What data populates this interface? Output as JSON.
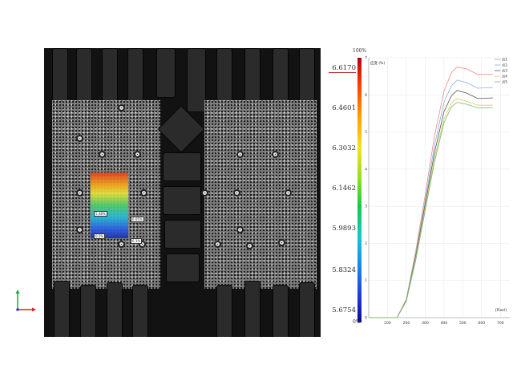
{
  "colorbar": {
    "max_percent": "100%",
    "min_percent": "0%",
    "values": [
      "6.6170",
      "6.4601",
      "6.3032",
      "6.1462",
      "5.9893",
      "5.8324",
      "5.6754"
    ]
  },
  "roi_labels": [
    "5.48%",
    "6.05%",
    "0.5%",
    "6.1%"
  ],
  "icons": {
    "axis_triad": "xyz-axis-triad-icon"
  },
  "colors": {
    "background": "#ffffff",
    "image_panel": "#121212",
    "grid": "#e6e6e6"
  },
  "chart_data": {
    "type": "line",
    "title": "",
    "ylabel": "应变 (%)",
    "xlabel": "[Pixel]",
    "xlim": [
      0,
      750
    ],
    "ylim": [
      0,
      7
    ],
    "xticks": [
      100,
      200,
      300,
      400,
      500,
      600,
      700
    ],
    "yticks": [
      0,
      1,
      2,
      3,
      4,
      5,
      6,
      7
    ],
    "legend_position": "top-right",
    "series": [
      {
        "name": "点1",
        "color": "#f08a8a",
        "points": [
          [
            0,
            0
          ],
          [
            150,
            0
          ],
          [
            200,
            0.5
          ],
          [
            250,
            1.8
          ],
          [
            300,
            3.3
          ],
          [
            350,
            4.9
          ],
          [
            400,
            6.1
          ],
          [
            440,
            6.6
          ],
          [
            470,
            6.75
          ],
          [
            520,
            6.7
          ],
          [
            580,
            6.55
          ],
          [
            660,
            6.55
          ]
        ]
      },
      {
        "name": "点2",
        "color": "#8aaee0",
        "points": [
          [
            0,
            0
          ],
          [
            150,
            0
          ],
          [
            200,
            0.48
          ],
          [
            250,
            1.72
          ],
          [
            300,
            3.15
          ],
          [
            350,
            4.65
          ],
          [
            400,
            5.8
          ],
          [
            440,
            6.25
          ],
          [
            470,
            6.4
          ],
          [
            520,
            6.33
          ],
          [
            580,
            6.18
          ],
          [
            660,
            6.2
          ]
        ]
      },
      {
        "name": "点3",
        "color": "#555555",
        "points": [
          [
            0,
            0
          ],
          [
            150,
            0
          ],
          [
            200,
            0.46
          ],
          [
            250,
            1.66
          ],
          [
            300,
            3.05
          ],
          [
            350,
            4.45
          ],
          [
            400,
            5.55
          ],
          [
            440,
            5.98
          ],
          [
            470,
            6.12
          ],
          [
            520,
            6.05
          ],
          [
            580,
            5.9
          ],
          [
            660,
            5.92
          ]
        ]
      },
      {
        "name": "点4",
        "color": "#d8c95a",
        "points": [
          [
            0,
            0
          ],
          [
            150,
            0
          ],
          [
            200,
            0.45
          ],
          [
            250,
            1.6
          ],
          [
            300,
            2.95
          ],
          [
            350,
            4.3
          ],
          [
            400,
            5.35
          ],
          [
            440,
            5.78
          ],
          [
            470,
            5.9
          ],
          [
            520,
            5.83
          ],
          [
            580,
            5.72
          ],
          [
            660,
            5.72
          ]
        ]
      },
      {
        "name": "点5",
        "color": "#6fb86f",
        "points": [
          [
            0,
            0
          ],
          [
            150,
            0
          ],
          [
            200,
            0.44
          ],
          [
            250,
            1.55
          ],
          [
            300,
            2.88
          ],
          [
            350,
            4.2
          ],
          [
            400,
            5.25
          ],
          [
            440,
            5.68
          ],
          [
            470,
            5.8
          ],
          [
            520,
            5.75
          ],
          [
            580,
            5.65
          ],
          [
            660,
            5.65
          ]
        ]
      }
    ]
  }
}
